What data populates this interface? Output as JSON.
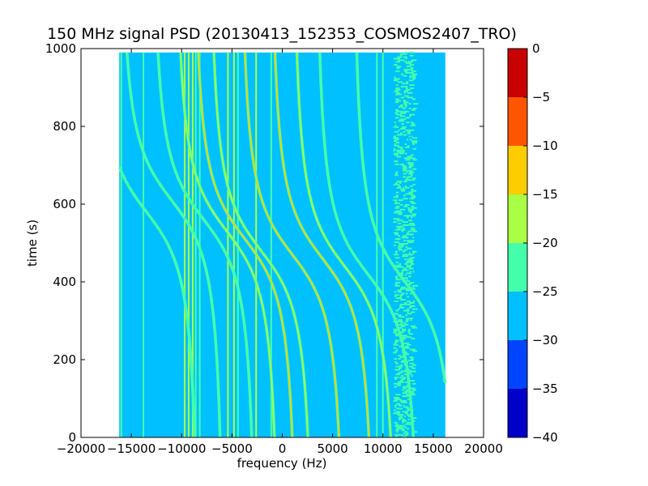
{
  "chart_data": {
    "type": "heatmap",
    "title": "150 MHz signal PSD (20130413_152353_COSMOS2407_TRO)",
    "xlabel": "frequency (Hz)",
    "ylabel": "time (s)",
    "xlim": [
      -20000,
      20000
    ],
    "ylim": [
      0,
      1000
    ],
    "xticks": [
      -20000,
      -15000,
      -10000,
      -5000,
      0,
      5000,
      10000,
      15000,
      20000
    ],
    "xtick_labels": [
      "−20000",
      "−15000",
      "−10000",
      "−5000",
      "0",
      "5000",
      "10000",
      "15000",
      "20000"
    ],
    "yticks": [
      0,
      200,
      400,
      600,
      800,
      1000
    ],
    "ytick_labels": [
      "0",
      "200",
      "400",
      "600",
      "800",
      "1000"
    ],
    "data_extent": {
      "freq": [
        -16200,
        16200
      ],
      "time": [
        0,
        990
      ]
    },
    "background_level": -27.5,
    "colorbar": {
      "levels": [
        -40,
        -35,
        -30,
        -25,
        -20,
        -15,
        -10,
        -5,
        0
      ],
      "tick_labels": [
        "−40",
        "−35",
        "−30",
        "−25",
        "−20",
        "−15",
        "−10",
        "−5",
        "0"
      ],
      "colors": [
        "#0000c8",
        "#0044ff",
        "#00c0ff",
        "#44ffaa",
        "#aaff44",
        "#ffcc00",
        "#ff5500",
        "#c80000"
      ]
    },
    "vertical_lines": [
      {
        "freq": -16000,
        "level": -22
      },
      {
        "freq": -13800,
        "level": -22
      },
      {
        "freq": -9700,
        "level": -17
      },
      {
        "freq": -9300,
        "level": -17
      },
      {
        "freq": -8900,
        "level": -17
      },
      {
        "freq": -8600,
        "level": -22
      },
      {
        "freq": -8200,
        "level": -22
      },
      {
        "freq": -5400,
        "level": -17
      },
      {
        "freq": -4800,
        "level": -17
      },
      {
        "freq": -4400,
        "level": -22
      },
      {
        "freq": -2600,
        "level": -17
      },
      {
        "freq": -1100,
        "level": -22
      },
      {
        "freq": 9400,
        "level": -22
      },
      {
        "freq": 10000,
        "level": -22
      }
    ],
    "doppler_tracks": [
      {
        "t_center": 580,
        "f_offset": -13500,
        "level": -22
      },
      {
        "t_center": 610,
        "f_offset": -11000,
        "level": -22
      },
      {
        "t_center": 560,
        "f_offset": -7800,
        "level": -22
      },
      {
        "t_center": 530,
        "f_offset": -5500,
        "level": -17
      },
      {
        "t_center": 510,
        "f_offset": -3700,
        "level": -12
      },
      {
        "t_center": 480,
        "f_offset": -2100,
        "level": -17
      },
      {
        "t_center": 470,
        "f_offset": 1000,
        "level": -12
      },
      {
        "t_center": 460,
        "f_offset": 4000,
        "level": -12
      },
      {
        "t_center": 440,
        "f_offset": 6200,
        "level": -17
      },
      {
        "t_center": 420,
        "f_offset": 8500,
        "level": -22
      },
      {
        "t_center": 400,
        "f_offset": 12200,
        "level": -22
      }
    ],
    "noise_band": {
      "freq_center": 12000,
      "width": 2000,
      "level": -22
    }
  }
}
